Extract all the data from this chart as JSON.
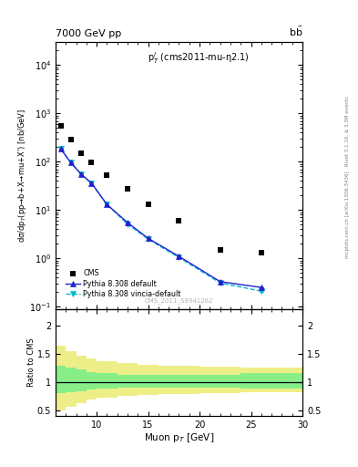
{
  "title_left": "7000 GeV pp",
  "title_right": "b$\\bar{b}$",
  "annotation": "p$^{l}_{T}$ (cms2011-mu-η2.1)",
  "watermark": "CMS_2011_S8941262",
  "right_label_top": "Rivet 3.1.10, ≥ 3.3M events",
  "right_label_bottom": "mcplots.cern.ch [arXiv:1306.3436]",
  "ylabel_main": "dσ/dp$_{T}$(pp→b+X→mu+X') [nb/GeV]",
  "ylabel_ratio": "Ratio to CMS",
  "xlabel": "Muon p$_{T}$ [GeV]",
  "xlim": [
    6,
    30
  ],
  "ylim_main": [
    0.09,
    30000
  ],
  "ylim_ratio": [
    0.4,
    2.3
  ],
  "cms_x": [
    6.5,
    7.5,
    8.5,
    9.5,
    11.0,
    13.0,
    15.0,
    18.0,
    22.0,
    26.0
  ],
  "cms_y": [
    550,
    290,
    150,
    95,
    52,
    27,
    13,
    6.0,
    1.5,
    1.3
  ],
  "pythia_default_x": [
    6.5,
    7.5,
    8.5,
    9.5,
    11.0,
    13.0,
    15.0,
    18.0,
    22.0,
    26.0
  ],
  "pythia_default_y": [
    185,
    95,
    55,
    36,
    13,
    5.5,
    2.6,
    1.1,
    0.33,
    0.25
  ],
  "pythia_vincia_x": [
    6.5,
    7.5,
    8.5,
    9.5,
    11.0,
    13.0,
    15.0,
    18.0,
    22.0,
    26.0
  ],
  "pythia_vincia_y": [
    185,
    95,
    55,
    36,
    13,
    5.1,
    2.5,
    1.04,
    0.31,
    0.21
  ],
  "ratio_x_edges": [
    6,
    7,
    8,
    9,
    10,
    12,
    14,
    16,
    20,
    24,
    30
  ],
  "ratio_green_lo": [
    0.8,
    0.82,
    0.84,
    0.87,
    0.88,
    0.9,
    0.9,
    0.9,
    0.9,
    0.88
  ],
  "ratio_green_hi": [
    1.28,
    1.25,
    1.22,
    1.18,
    1.15,
    1.13,
    1.12,
    1.12,
    1.13,
    1.15
  ],
  "ratio_yellow_lo": [
    0.5,
    0.56,
    0.62,
    0.68,
    0.72,
    0.75,
    0.77,
    0.78,
    0.8,
    0.82
  ],
  "ratio_yellow_hi": [
    1.65,
    1.55,
    1.47,
    1.42,
    1.37,
    1.33,
    1.3,
    1.28,
    1.27,
    1.25
  ],
  "cms_color": "#000000",
  "pythia_default_color": "#2222cc",
  "pythia_vincia_color": "#00bbcc",
  "green_color": "#88ee88",
  "yellow_color": "#eeee88",
  "background_color": "#ffffff"
}
